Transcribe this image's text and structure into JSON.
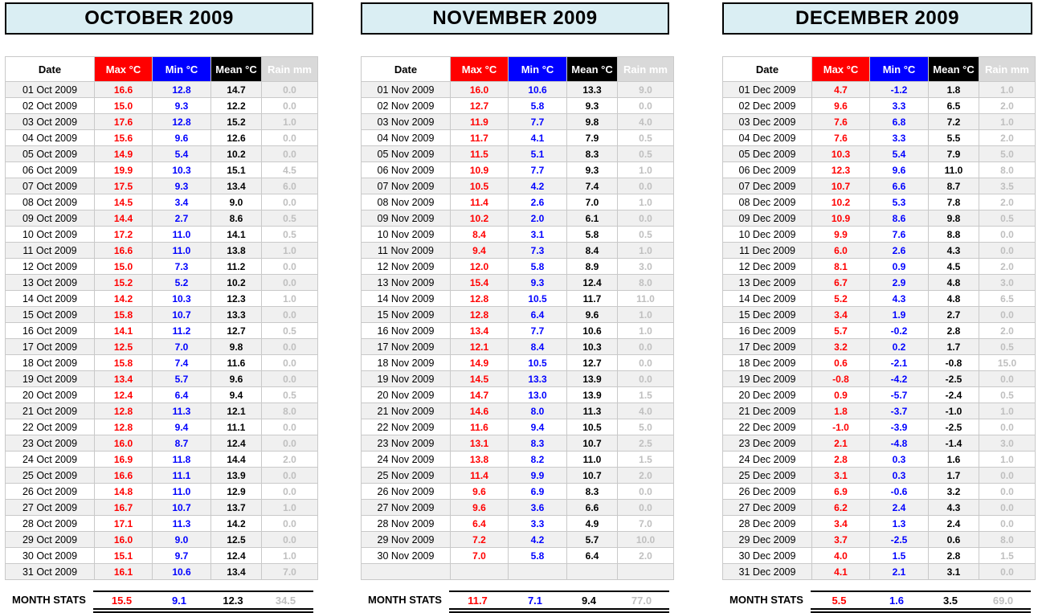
{
  "colors": {
    "max": "#FF0000",
    "min": "#0000FF",
    "mean": "#000000",
    "rainText": "#BFBFBF",
    "rainHeadBg": "#D9D9D9",
    "titleBg": "#DAEEF3",
    "shade": "#F0F0F0",
    "gridBorder": "#C9C9C9"
  },
  "chart_data": [
    {
      "type": "table",
      "title": "OCTOBER 2009",
      "columns": [
        "Date",
        "Max °C",
        "Min °C",
        "Mean °C",
        "Rain mm"
      ],
      "rows": [
        [
          "01 Oct 2009",
          "16.6",
          "12.8",
          "14.7",
          "0.0"
        ],
        [
          "02 Oct 2009",
          "15.0",
          "9.3",
          "12.2",
          "0.0"
        ],
        [
          "03 Oct 2009",
          "17.6",
          "12.8",
          "15.2",
          "1.0"
        ],
        [
          "04 Oct 2009",
          "15.6",
          "9.6",
          "12.6",
          "0.0"
        ],
        [
          "05 Oct 2009",
          "14.9",
          "5.4",
          "10.2",
          "0.0"
        ],
        [
          "06 Oct 2009",
          "19.9",
          "10.3",
          "15.1",
          "4.5"
        ],
        [
          "07 Oct 2009",
          "17.5",
          "9.3",
          "13.4",
          "6.0"
        ],
        [
          "08 Oct 2009",
          "14.5",
          "3.4",
          "9.0",
          "0.0"
        ],
        [
          "09 Oct 2009",
          "14.4",
          "2.7",
          "8.6",
          "0.5"
        ],
        [
          "10 Oct 2009",
          "17.2",
          "11.0",
          "14.1",
          "0.5"
        ],
        [
          "11 Oct 2009",
          "16.6",
          "11.0",
          "13.8",
          "1.0"
        ],
        [
          "12 Oct 2009",
          "15.0",
          "7.3",
          "11.2",
          "0.0"
        ],
        [
          "13 Oct 2009",
          "15.2",
          "5.2",
          "10.2",
          "0.0"
        ],
        [
          "14 Oct 2009",
          "14.2",
          "10.3",
          "12.3",
          "1.0"
        ],
        [
          "15 Oct 2009",
          "15.8",
          "10.7",
          "13.3",
          "0.0"
        ],
        [
          "16 Oct 2009",
          "14.1",
          "11.2",
          "12.7",
          "0.5"
        ],
        [
          "17 Oct 2009",
          "12.5",
          "7.0",
          "9.8",
          "0.0"
        ],
        [
          "18 Oct 2009",
          "15.8",
          "7.4",
          "11.6",
          "0.0"
        ],
        [
          "19 Oct 2009",
          "13.4",
          "5.7",
          "9.6",
          "0.0"
        ],
        [
          "20 Oct 2009",
          "12.4",
          "6.4",
          "9.4",
          "0.5"
        ],
        [
          "21 Oct 2009",
          "12.8",
          "11.3",
          "12.1",
          "8.0"
        ],
        [
          "22 Oct 2009",
          "12.8",
          "9.4",
          "11.1",
          "0.0"
        ],
        [
          "23 Oct 2009",
          "16.0",
          "8.7",
          "12.4",
          "0.0"
        ],
        [
          "24 Oct 2009",
          "16.9",
          "11.8",
          "14.4",
          "2.0"
        ],
        [
          "25 Oct 2009",
          "16.6",
          "11.1",
          "13.9",
          "0.0"
        ],
        [
          "26 Oct 2009",
          "14.8",
          "11.0",
          "12.9",
          "0.0"
        ],
        [
          "27 Oct 2009",
          "16.7",
          "10.7",
          "13.7",
          "1.0"
        ],
        [
          "28 Oct 2009",
          "17.1",
          "11.3",
          "14.2",
          "0.0"
        ],
        [
          "29 Oct 2009",
          "16.0",
          "9.0",
          "12.5",
          "0.0"
        ],
        [
          "30 Oct 2009",
          "15.1",
          "9.7",
          "12.4",
          "1.0"
        ],
        [
          "31 Oct 2009",
          "16.1",
          "10.6",
          "13.4",
          "7.0"
        ]
      ],
      "stats": {
        "label": "MONTH STATS",
        "max": "15.5",
        "min": "9.1",
        "mean": "12.3",
        "rain": "34.5"
      }
    },
    {
      "type": "table",
      "title": "NOVEMBER 2009",
      "columns": [
        "Date",
        "Max °C",
        "Min °C",
        "Mean °C",
        "Rain mm"
      ],
      "rows": [
        [
          "01 Nov 2009",
          "16.0",
          "10.6",
          "13.3",
          "9.0"
        ],
        [
          "02 Nov 2009",
          "12.7",
          "5.8",
          "9.3",
          "0.0"
        ],
        [
          "03 Nov 2009",
          "11.9",
          "7.7",
          "9.8",
          "4.0"
        ],
        [
          "04 Nov 2009",
          "11.7",
          "4.1",
          "7.9",
          "0.5"
        ],
        [
          "05 Nov 2009",
          "11.5",
          "5.1",
          "8.3",
          "0.5"
        ],
        [
          "06 Nov 2009",
          "10.9",
          "7.7",
          "9.3",
          "1.0"
        ],
        [
          "07 Nov 2009",
          "10.5",
          "4.2",
          "7.4",
          "0.0"
        ],
        [
          "08 Nov 2009",
          "11.4",
          "2.6",
          "7.0",
          "1.0"
        ],
        [
          "09 Nov 2009",
          "10.2",
          "2.0",
          "6.1",
          "0.0"
        ],
        [
          "10 Nov 2009",
          "8.4",
          "3.1",
          "5.8",
          "0.5"
        ],
        [
          "11 Nov 2009",
          "9.4",
          "7.3",
          "8.4",
          "1.0"
        ],
        [
          "12 Nov 2009",
          "12.0",
          "5.8",
          "8.9",
          "3.0"
        ],
        [
          "13 Nov 2009",
          "15.4",
          "9.3",
          "12.4",
          "8.0"
        ],
        [
          "14 Nov 2009",
          "12.8",
          "10.5",
          "11.7",
          "11.0"
        ],
        [
          "15 Nov 2009",
          "12.8",
          "6.4",
          "9.6",
          "1.0"
        ],
        [
          "16 Nov 2009",
          "13.4",
          "7.7",
          "10.6",
          "1.0"
        ],
        [
          "17 Nov 2009",
          "12.1",
          "8.4",
          "10.3",
          "0.0"
        ],
        [
          "18 Nov 2009",
          "14.9",
          "10.5",
          "12.7",
          "0.0"
        ],
        [
          "19 Nov 2009",
          "14.5",
          "13.3",
          "13.9",
          "0.0"
        ],
        [
          "20 Nov 2009",
          "14.7",
          "13.0",
          "13.9",
          "1.5"
        ],
        [
          "21 Nov 2009",
          "14.6",
          "8.0",
          "11.3",
          "4.0"
        ],
        [
          "22 Nov 2009",
          "11.6",
          "9.4",
          "10.5",
          "5.0"
        ],
        [
          "23 Nov 2009",
          "13.1",
          "8.3",
          "10.7",
          "2.5"
        ],
        [
          "24 Nov 2009",
          "13.8",
          "8.2",
          "11.0",
          "1.5"
        ],
        [
          "25 Nov 2009",
          "11.4",
          "9.9",
          "10.7",
          "2.0"
        ],
        [
          "26 Nov 2009",
          "9.6",
          "6.9",
          "8.3",
          "0.0"
        ],
        [
          "27 Nov 2009",
          "9.6",
          "3.6",
          "6.6",
          "0.0"
        ],
        [
          "28 Nov 2009",
          "6.4",
          "3.3",
          "4.9",
          "7.0"
        ],
        [
          "29 Nov 2009",
          "7.2",
          "4.2",
          "5.7",
          "10.0"
        ],
        [
          "30 Nov 2009",
          "7.0",
          "5.8",
          "6.4",
          "2.0"
        ],
        [
          "",
          "",
          "",
          "",
          ""
        ]
      ],
      "stats": {
        "label": "MONTH STATS",
        "max": "11.7",
        "min": "7.1",
        "mean": "9.4",
        "rain": "77.0"
      }
    },
    {
      "type": "table",
      "title": "DECEMBER 2009",
      "columns": [
        "Date",
        "Max °C",
        "Min °C",
        "Mean °C",
        "Rain mm"
      ],
      "rows": [
        [
          "01 Dec 2009",
          "4.7",
          "-1.2",
          "1.8",
          "1.0"
        ],
        [
          "02 Dec 2009",
          "9.6",
          "3.3",
          "6.5",
          "2.0"
        ],
        [
          "03 Dec 2009",
          "7.6",
          "6.8",
          "7.2",
          "1.0"
        ],
        [
          "04 Dec 2009",
          "7.6",
          "3.3",
          "5.5",
          "2.0"
        ],
        [
          "05 Dec 2009",
          "10.3",
          "5.4",
          "7.9",
          "5.0"
        ],
        [
          "06 Dec 2009",
          "12.3",
          "9.6",
          "11.0",
          "8.0"
        ],
        [
          "07 Dec 2009",
          "10.7",
          "6.6",
          "8.7",
          "3.5"
        ],
        [
          "08 Dec 2009",
          "10.2",
          "5.3",
          "7.8",
          "2.0"
        ],
        [
          "09 Dec 2009",
          "10.9",
          "8.6",
          "9.8",
          "0.5"
        ],
        [
          "10 Dec 2009",
          "9.9",
          "7.6",
          "8.8",
          "0.0"
        ],
        [
          "11 Dec 2009",
          "6.0",
          "2.6",
          "4.3",
          "0.0"
        ],
        [
          "12 Dec 2009",
          "8.1",
          "0.9",
          "4.5",
          "2.0"
        ],
        [
          "13 Dec 2009",
          "6.7",
          "2.9",
          "4.8",
          "3.0"
        ],
        [
          "14 Dec 2009",
          "5.2",
          "4.3",
          "4.8",
          "6.5"
        ],
        [
          "15 Dec 2009",
          "3.4",
          "1.9",
          "2.7",
          "0.0"
        ],
        [
          "16 Dec 2009",
          "5.7",
          "-0.2",
          "2.8",
          "2.0"
        ],
        [
          "17 Dec 2009",
          "3.2",
          "0.2",
          "1.7",
          "0.5"
        ],
        [
          "18 Dec 2009",
          "0.6",
          "-2.1",
          "-0.8",
          "15.0"
        ],
        [
          "19 Dec 2009",
          "-0.8",
          "-4.2",
          "-2.5",
          "0.0"
        ],
        [
          "20 Dec 2009",
          "0.9",
          "-5.7",
          "-2.4",
          "0.5"
        ],
        [
          "21 Dec 2009",
          "1.8",
          "-3.7",
          "-1.0",
          "1.0"
        ],
        [
          "22 Dec 2009",
          "-1.0",
          "-3.9",
          "-2.5",
          "0.0"
        ],
        [
          "23 Dec 2009",
          "2.1",
          "-4.8",
          "-1.4",
          "3.0"
        ],
        [
          "24 Dec 2009",
          "2.8",
          "0.3",
          "1.6",
          "1.0"
        ],
        [
          "25 Dec 2009",
          "3.1",
          "0.3",
          "1.7",
          "0.0"
        ],
        [
          "26 Dec 2009",
          "6.9",
          "-0.6",
          "3.2",
          "0.0"
        ],
        [
          "27 Dec 2009",
          "6.2",
          "2.4",
          "4.3",
          "0.0"
        ],
        [
          "28 Dec 2009",
          "3.4",
          "1.3",
          "2.4",
          "0.0"
        ],
        [
          "29 Dec 2009",
          "3.7",
          "-2.5",
          "0.6",
          "8.0"
        ],
        [
          "30 Dec 2009",
          "4.0",
          "1.5",
          "2.8",
          "1.5"
        ],
        [
          "31 Dec 2009",
          "4.1",
          "2.1",
          "3.1",
          "0.0"
        ]
      ],
      "stats": {
        "label": "MONTH STATS",
        "max": "5.5",
        "min": "1.6",
        "mean": "3.5",
        "rain": "69.0"
      }
    }
  ]
}
